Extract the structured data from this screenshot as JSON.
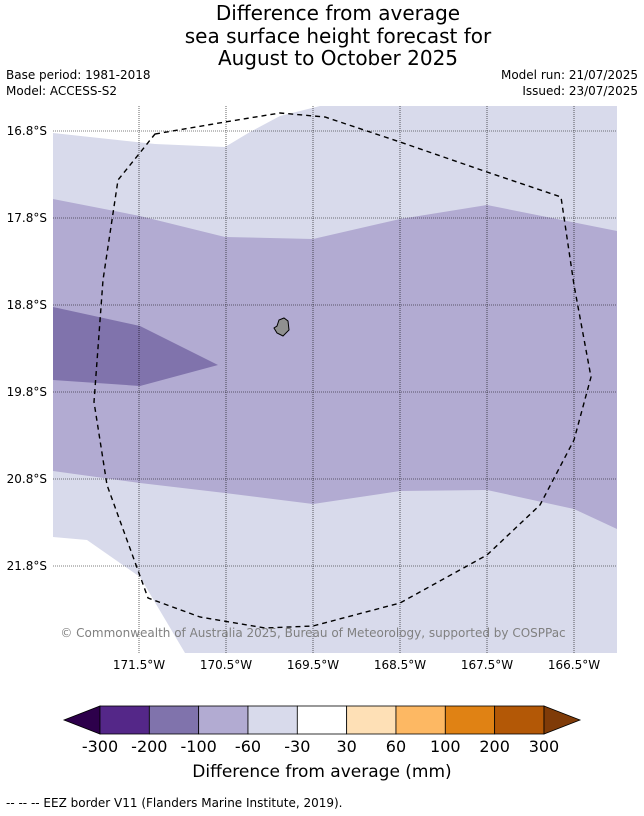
{
  "title": {
    "line1": "Difference from average",
    "line2": "sea surface height forecast for",
    "line3": "August to October 2025"
  },
  "meta": {
    "base_period": "Base period: 1981-2018",
    "model": "Model: ACCESS-S2",
    "model_run": "Model run: 21/07/2025",
    "issued": "Issued: 23/07/2025"
  },
  "map": {
    "lat_labels": [
      "16.8°S",
      "17.8°S",
      "18.8°S",
      "19.8°S",
      "20.8°S",
      "21.8°S"
    ],
    "lon_labels": [
      "171.5°W",
      "170.5°W",
      "169.5°W",
      "168.5°W",
      "167.5°W",
      "166.5°W"
    ],
    "copyright": "© Commonwealth of Australia 2025, Bureau of Meteorology, supported by COSPPac",
    "colors": {
      "band_-200_-100": "#8073ac",
      "band_-100_-60": "#b2abd2",
      "band_-60_-30": "#d8daeb",
      "land": "#909090",
      "eez": "#000000"
    }
  },
  "colorbar": {
    "labels": [
      "-300",
      "-200",
      "-100",
      "-60",
      "-30",
      "30",
      "60",
      "100",
      "200",
      "300"
    ],
    "under_color": "#2d004b",
    "over_color": "#7f3b08",
    "colors": [
      "#542788",
      "#8073ac",
      "#b2abd2",
      "#d8daeb",
      "#ffffff",
      "#fee0b6",
      "#fdb863",
      "#e08214",
      "#b35806"
    ],
    "title": "Difference from average (mm)"
  },
  "footer": {
    "legend": "--  --  -- EEZ border V11 (Flanders Marine Institute, 2019)."
  }
}
